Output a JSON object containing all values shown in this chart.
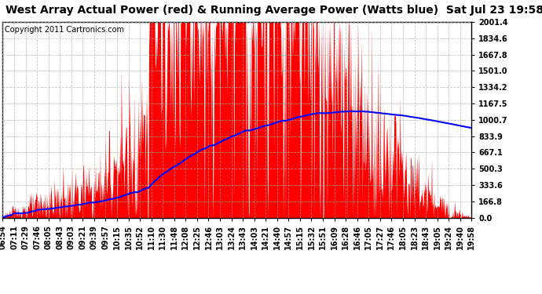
{
  "title": "West Array Actual Power (red) & Running Average Power (Watts blue)  Sat Jul 23 19:58",
  "copyright": "Copyright 2011 Cartronics.com",
  "background_color": "#ffffff",
  "plot_bg_color": "#ffffff",
  "y_ticks": [
    0.0,
    166.8,
    333.6,
    500.3,
    667.1,
    833.9,
    1000.7,
    1167.5,
    1334.2,
    1501.0,
    1667.8,
    1834.6,
    2001.4
  ],
  "ylim": [
    0,
    2001.4
  ],
  "x_labels": [
    "06:54",
    "07:11",
    "07:29",
    "07:46",
    "08:05",
    "08:43",
    "09:03",
    "09:21",
    "09:39",
    "09:57",
    "10:15",
    "10:35",
    "10:52",
    "11:10",
    "11:30",
    "11:48",
    "12:08",
    "12:25",
    "12:46",
    "13:03",
    "13:24",
    "13:43",
    "14:03",
    "14:21",
    "14:40",
    "14:57",
    "15:15",
    "15:32",
    "15:51",
    "16:09",
    "16:28",
    "16:46",
    "17:05",
    "17:27",
    "17:46",
    "18:05",
    "18:23",
    "18:43",
    "19:05",
    "19:24",
    "19:40",
    "19:58"
  ],
  "actual_color": "#ff0000",
  "avg_color": "#0000ff",
  "grid_color": "#aaaaaa",
  "title_fontsize": 10,
  "tick_fontsize": 7,
  "copyright_fontsize": 7
}
